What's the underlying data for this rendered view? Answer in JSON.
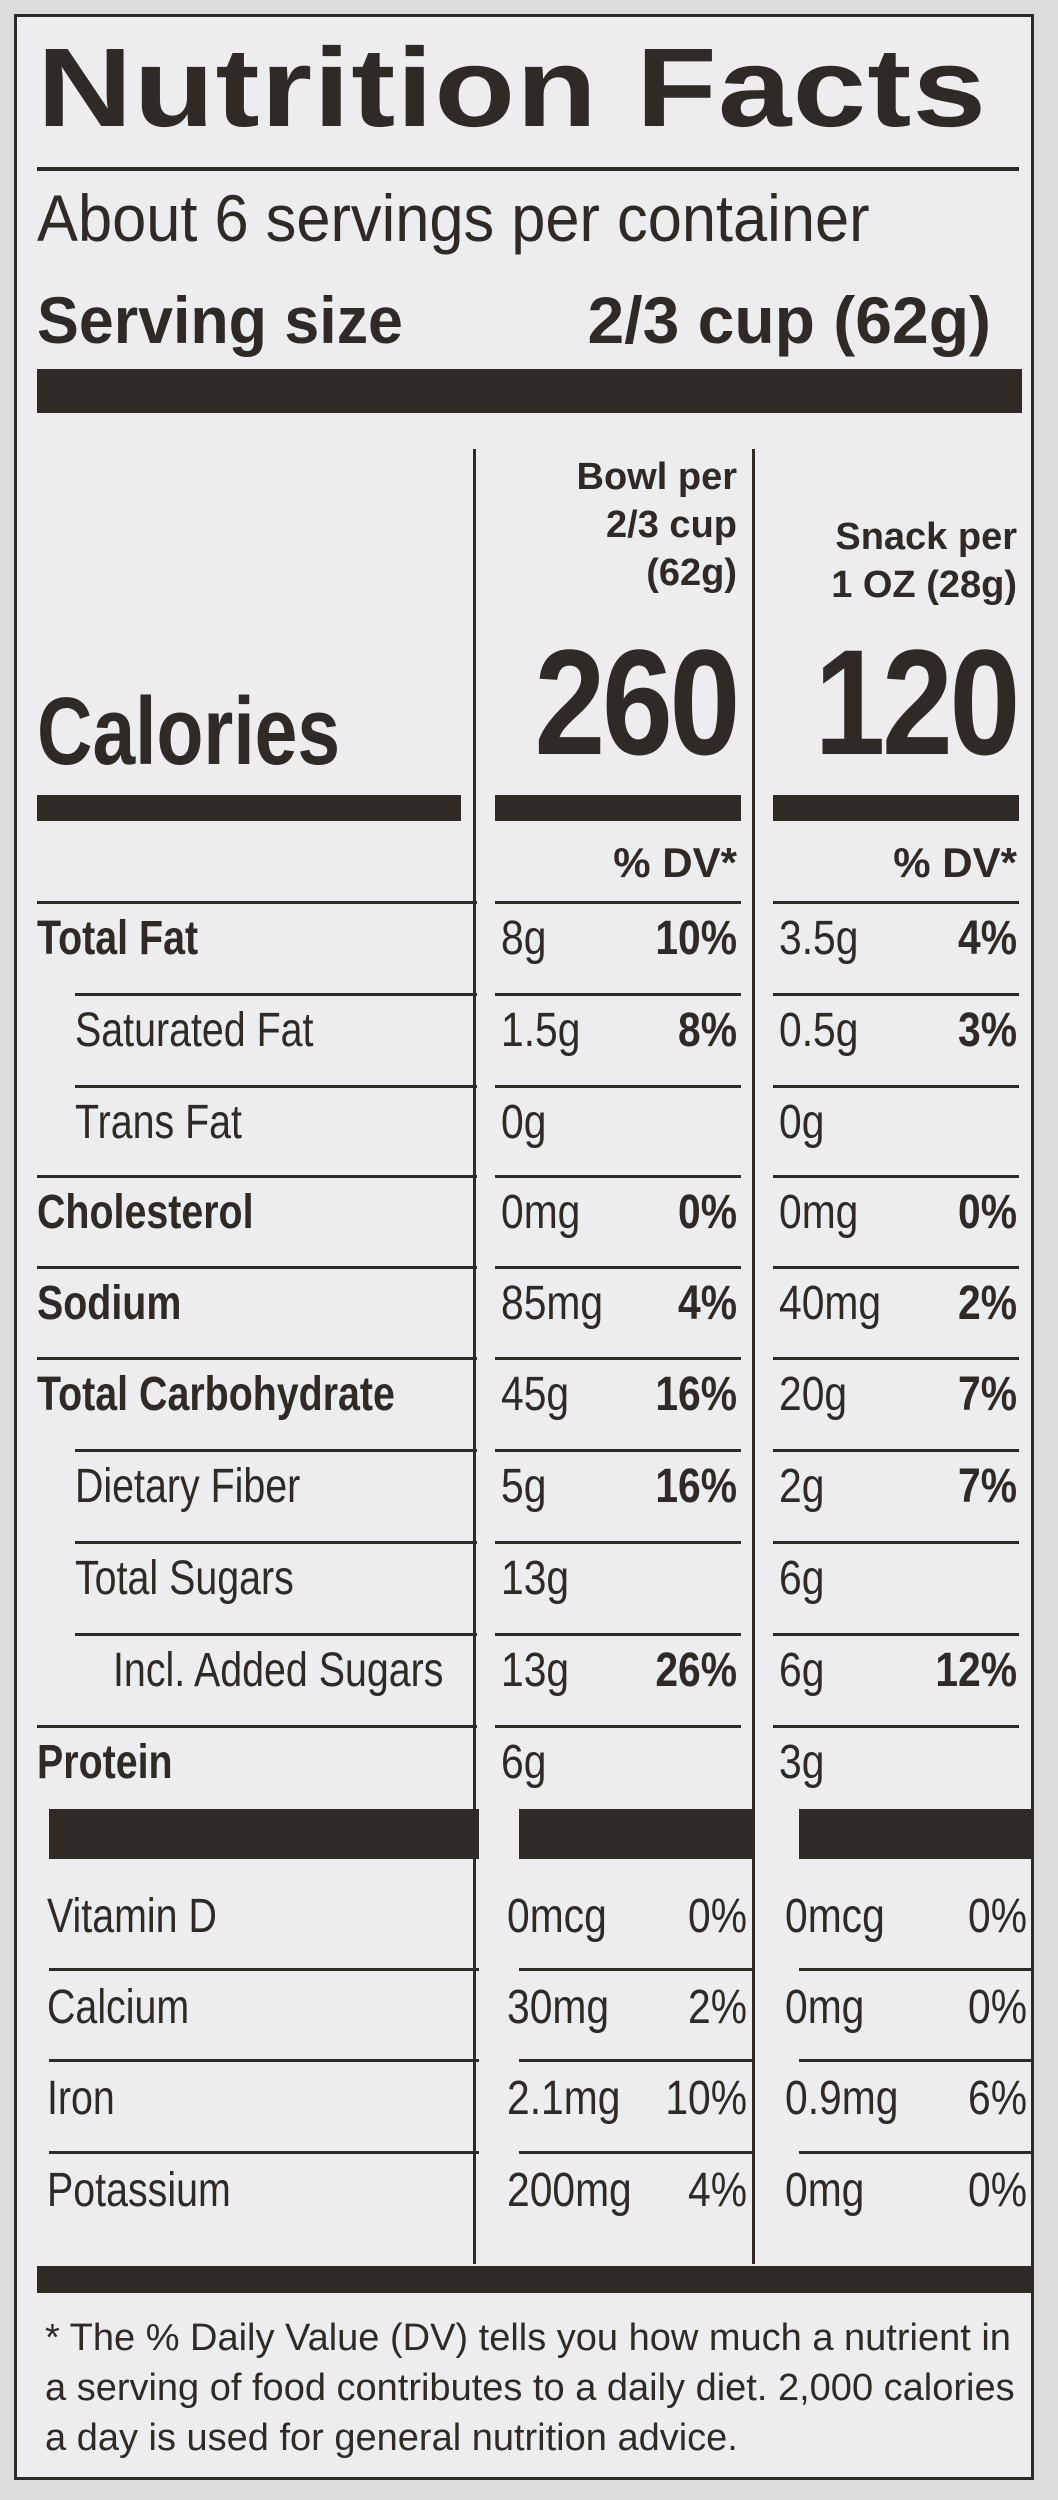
{
  "title": "Nutrition Facts",
  "servings_per_container": "About 6 servings per container",
  "serving_size": {
    "label": "Serving size",
    "value": "2/3 cup (62g)"
  },
  "columns": [
    {
      "header_line1": "Bowl per",
      "header_line2": "2/3 cup",
      "header_line3": "(62g)",
      "calories": "260",
      "dv": "% DV*"
    },
    {
      "header_line1": "",
      "header_line2": "Snack per",
      "header_line3": "1 OZ (28g)",
      "calories": "120",
      "dv": "% DV*"
    }
  ],
  "calories_label": "Calories",
  "nutrients": [
    {
      "name": "Total Fat",
      "bold": true,
      "c1_amount": "8g",
      "c1_dv": "10%",
      "c2_amount": "3.5g",
      "c2_dv": "4%"
    },
    {
      "name": "Saturated Fat",
      "bold": false,
      "c1_amount": "1.5g",
      "c1_dv": "8%",
      "c2_amount": "0.5g",
      "c2_dv": "3%"
    },
    {
      "name": "Trans Fat",
      "bold": false,
      "c1_amount": "0g",
      "c1_dv": "",
      "c2_amount": "0g",
      "c2_dv": ""
    },
    {
      "name": "Cholesterol",
      "bold": true,
      "c1_amount": "0mg",
      "c1_dv": "0%",
      "c2_amount": "0mg",
      "c2_dv": "0%"
    },
    {
      "name": "Sodium",
      "bold": true,
      "c1_amount": "85mg",
      "c1_dv": "4%",
      "c2_amount": "40mg",
      "c2_dv": "2%"
    },
    {
      "name": "Total Carbohydrate",
      "bold": true,
      "c1_amount": "45g",
      "c1_dv": "16%",
      "c2_amount": "20g",
      "c2_dv": "7%"
    },
    {
      "name": "Dietary Fiber",
      "bold": false,
      "c1_amount": "5g",
      "c1_dv": "16%",
      "c2_amount": "2g",
      "c2_dv": "7%"
    },
    {
      "name": "Total Sugars",
      "bold": false,
      "c1_amount": "13g",
      "c1_dv": "",
      "c2_amount": "6g",
      "c2_dv": ""
    },
    {
      "name": "Incl. Added Sugars",
      "bold": false,
      "c1_amount": "13g",
      "c1_dv": "26%",
      "c2_amount": "6g",
      "c2_dv": "12%"
    },
    {
      "name": "Protein",
      "bold": true,
      "c1_amount": "6g",
      "c1_dv": "",
      "c2_amount": "3g",
      "c2_dv": ""
    }
  ],
  "vitamins": [
    {
      "name": "Vitamin D",
      "c1_amount": "0mcg",
      "c1_dv": "0%",
      "c2_amount": "0mcg",
      "c2_dv": "0%"
    },
    {
      "name": "Calcium",
      "c1_amount": "30mg",
      "c1_dv": "2%",
      "c2_amount": "0mg",
      "c2_dv": "0%"
    },
    {
      "name": "Iron",
      "c1_amount": "2.1mg",
      "c1_dv": "10%",
      "c2_amount": "0.9mg",
      "c2_dv": "6%"
    },
    {
      "name": "Potassium",
      "c1_amount": "200mg",
      "c1_dv": "4%",
      "c2_amount": "0mg",
      "c2_dv": "0%"
    }
  ],
  "footnote": "* The % Daily Value (DV) tells you how much a nutrient in a serving of food contributes to a daily diet. 2,000 calories a day is used for general nutrition advice.",
  "colors": {
    "ink": "#2f2a26",
    "paper": "#ededef",
    "background": "#dcdcdc"
  }
}
